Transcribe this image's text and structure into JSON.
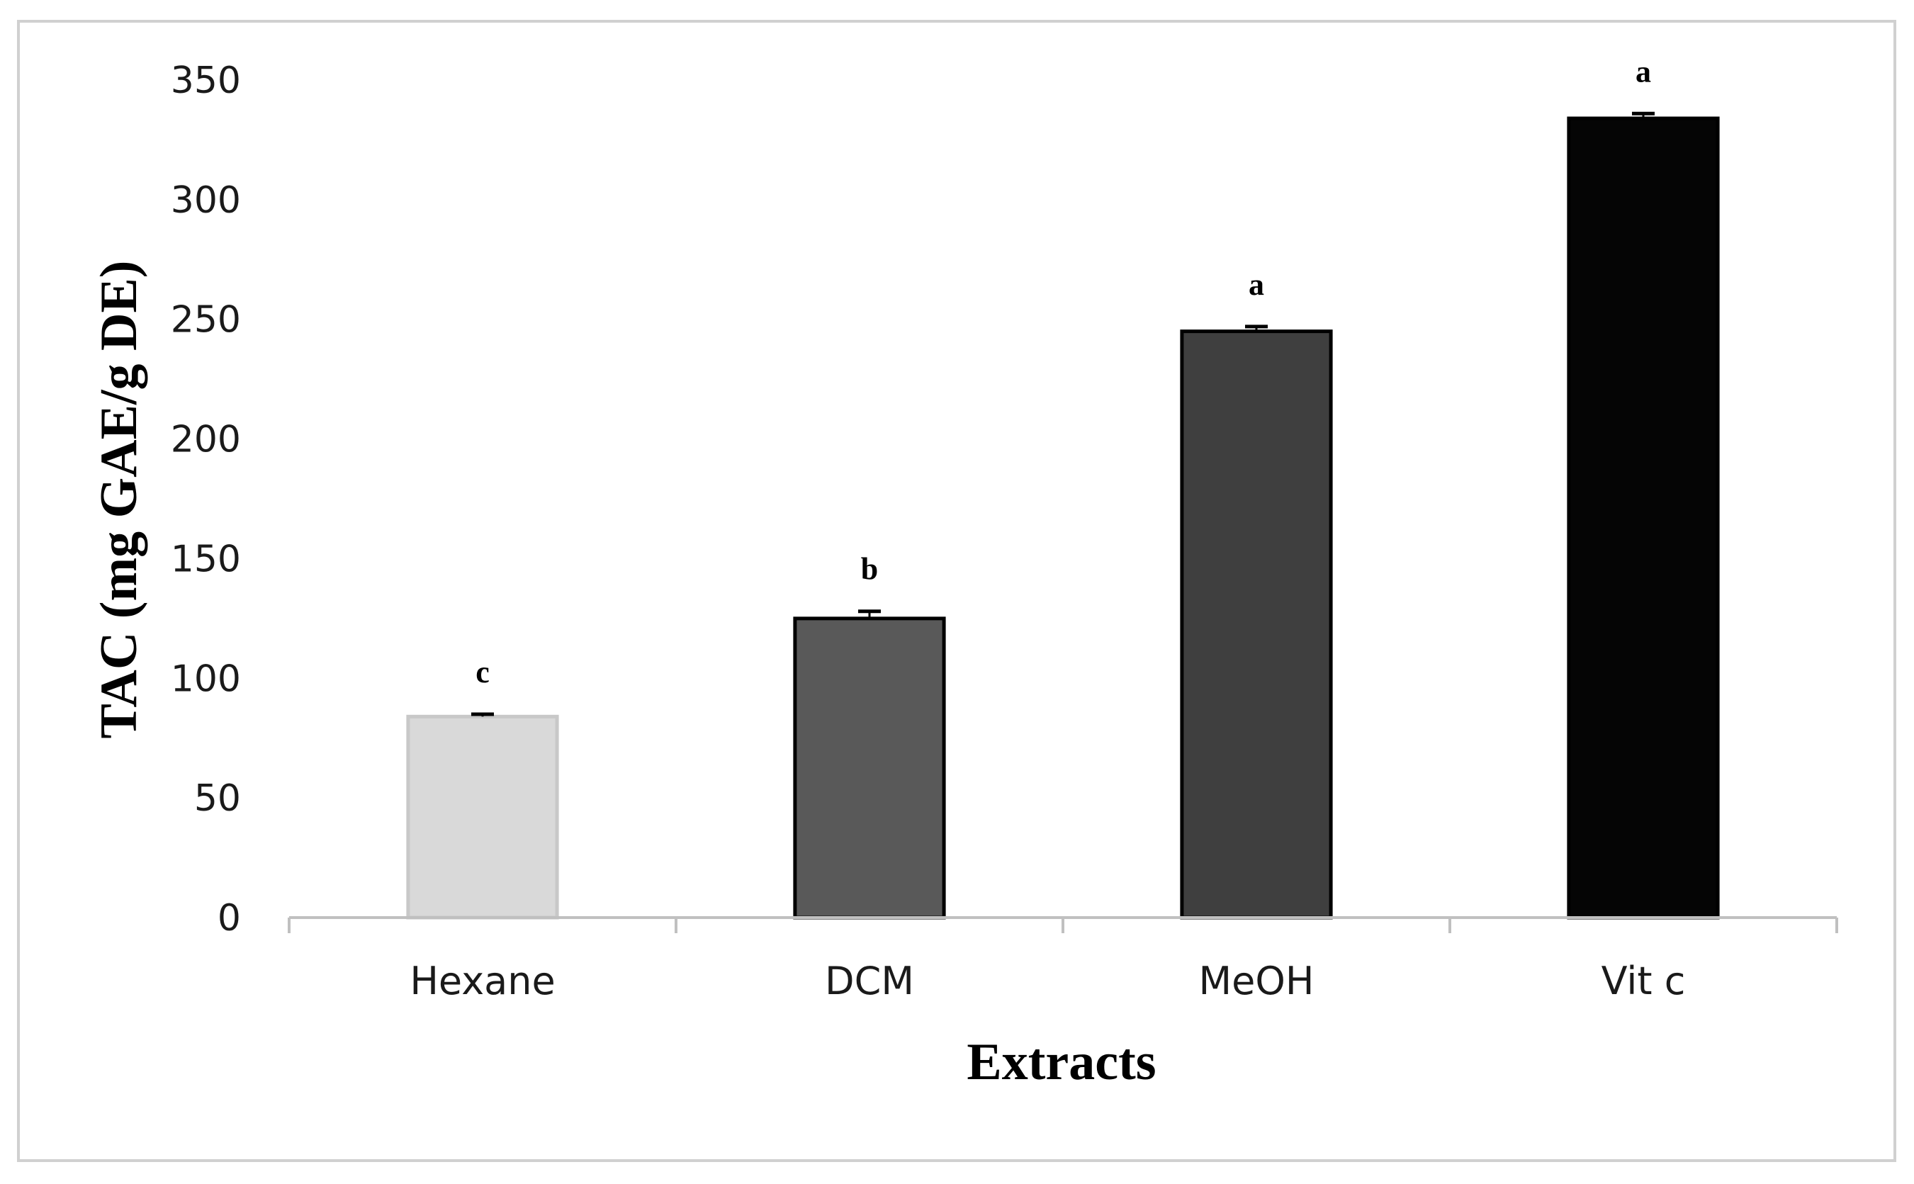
{
  "chart_data": {
    "type": "bar",
    "xlabel": "Extracts",
    "ylabel": "TAC (mg GAE/g DE)",
    "categories": [
      "Hexane",
      "DCM",
      "MeOH",
      "Vit c"
    ],
    "values": [
      84,
      125,
      245,
      334
    ],
    "errors": [
      1,
      3,
      2,
      2
    ],
    "significance_letters": [
      "c",
      "b",
      "a",
      "a"
    ],
    "ylim": [
      0,
      350
    ],
    "yticks": [
      0,
      50,
      100,
      150,
      200,
      250,
      300,
      350
    ],
    "grid": false,
    "legend": "none",
    "colors": {
      "bar_fills": [
        "#d9d9d9",
        "#595959",
        "#3f3f3f",
        "#050505"
      ],
      "bar_outlines": [
        "#c8c8c8",
        "#000000",
        "#000000",
        "#000000"
      ],
      "axis": "#c0c0c0",
      "frame": "#d0d0d0"
    }
  }
}
